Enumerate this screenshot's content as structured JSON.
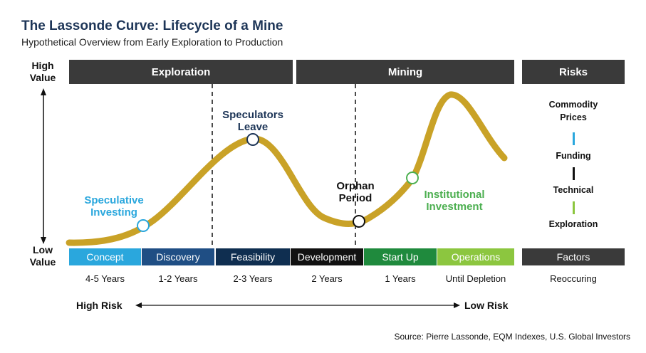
{
  "title": "The Lassonde Curve: Lifecycle of a Mine",
  "subtitle": "Hypothetical Overview from Early Exploration to Production",
  "y_axis": {
    "high": "High Value",
    "low": "Low Value"
  },
  "headers": {
    "exploration": "Exploration",
    "mining": "Mining",
    "risks": "Risks"
  },
  "stages": [
    {
      "label": "Concept",
      "duration": "4-5 Years",
      "color": "#2aa7dd"
    },
    {
      "label": "Discovery",
      "duration": "1-2 Years",
      "color": "#1f4e84"
    },
    {
      "label": "Feasibility",
      "duration": "2-3 Years",
      "color": "#0f2e50"
    },
    {
      "label": "Development",
      "duration": "2 Years",
      "color": "#111111"
    },
    {
      "label": "Start Up",
      "duration": "1 Years",
      "color": "#1f8a3d"
    },
    {
      "label": "Operations",
      "duration": "Until Depletion",
      "color": "#8cc63f"
    }
  ],
  "factors": {
    "label": "Factors",
    "duration": "Reoccuring"
  },
  "annotations": {
    "speculative": "Speculative Investing",
    "speculators_leave": "Speculators Leave",
    "orphan": "Orphan Period",
    "institutional": "Institutional Investment"
  },
  "risks": [
    {
      "label": "Commodity Prices"
    },
    {
      "label": "Funding",
      "color": "#2aa7dd"
    },
    {
      "label": "Technical",
      "color": "#111111"
    },
    {
      "label": "Exploration",
      "color": "#8cc63f"
    }
  ],
  "risk_axis": {
    "left": "High Risk",
    "right": "Low Risk"
  },
  "source": "Source: Pierre Lassonde, EQM Indexes, U.S. Global Investors",
  "colors": {
    "curve": "#c9a227",
    "header_bg": "#3a3a3a",
    "title": "#1d3557",
    "speculative": "#2aa7dd",
    "speculators_leave": "#1d3557",
    "orphan": "#111111",
    "institutional": "#4caf50"
  }
}
